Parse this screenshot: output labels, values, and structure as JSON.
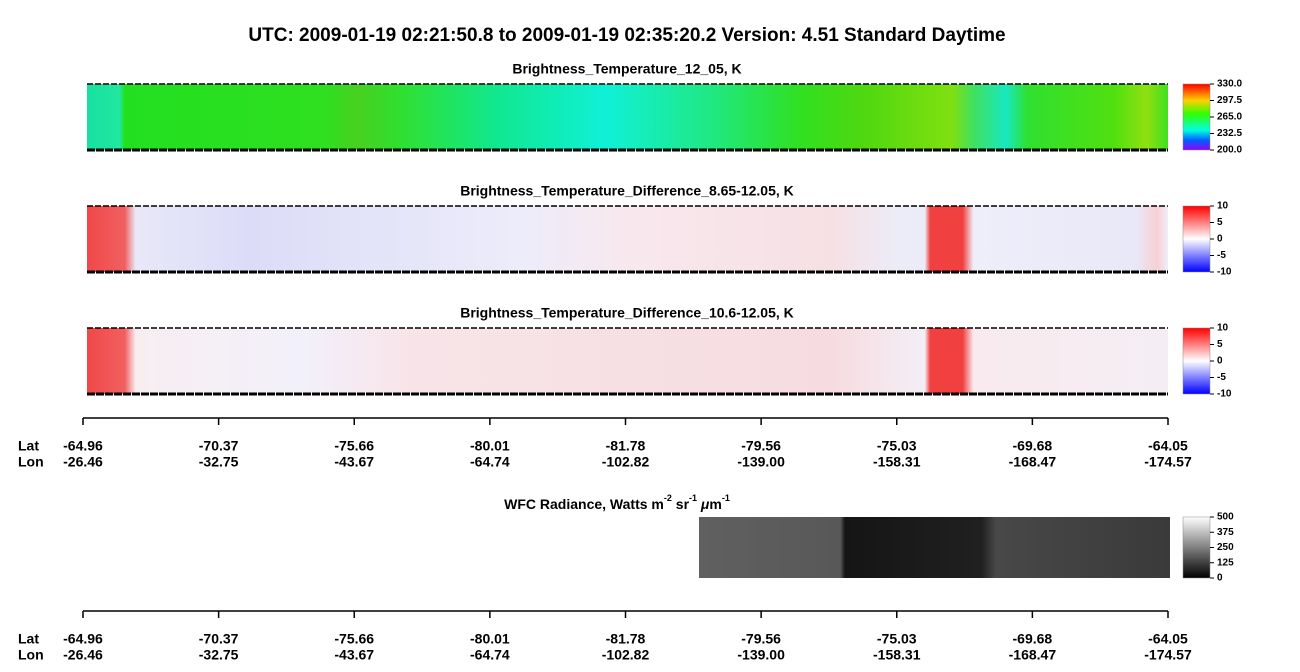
{
  "title": "UTC:  2009-01-19   02:21:50.8  to  2009-01-19   02:35:20.2    Version: 4.51  Standard Daytime",
  "panels": [
    {
      "title": "Brightness_Temperature_12_05, K",
      "range": [
        200,
        330
      ],
      "ticks": [
        {
          "value": 330,
          "label": "330.0"
        },
        {
          "value": 297.5,
          "label": "297.5"
        },
        {
          "value": 265,
          "label": "265.0"
        },
        {
          "value": 232.5,
          "label": "232.5"
        },
        {
          "value": 200,
          "label": "200.0"
        }
      ]
    },
    {
      "title": "Brightness_Temperature_Difference_8.65-12.05, K",
      "range": [
        -10,
        10
      ],
      "ticks": [
        10,
        5,
        0,
        -5,
        -10
      ]
    },
    {
      "title": "Brightness_Temperature_Difference_10.6-12.05, K",
      "range": [
        -10,
        10
      ],
      "ticks": [
        10,
        5,
        0,
        -5,
        -10
      ]
    }
  ],
  "axis": {
    "lat_label": "Lat",
    "lon_label": "Lon",
    "lat": [
      "-64.96",
      "-70.37",
      "-75.66",
      "-80.01",
      "-81.78",
      "-79.56",
      "-75.03",
      "-69.68",
      "-64.05"
    ],
    "lon": [
      "-26.46",
      "-32.75",
      "-43.67",
      "-64.74",
      "-102.82",
      "-139.00",
      "-158.31",
      "-168.47",
      "-174.57"
    ]
  },
  "wfc": {
    "title_parts": [
      "WFC Radiance, Watts m",
      "-2",
      " sr",
      "-1",
      " μ",
      "m",
      "-1"
    ],
    "range": [
      0,
      500
    ],
    "ticks": [
      500,
      375,
      250,
      125,
      0
    ]
  }
}
